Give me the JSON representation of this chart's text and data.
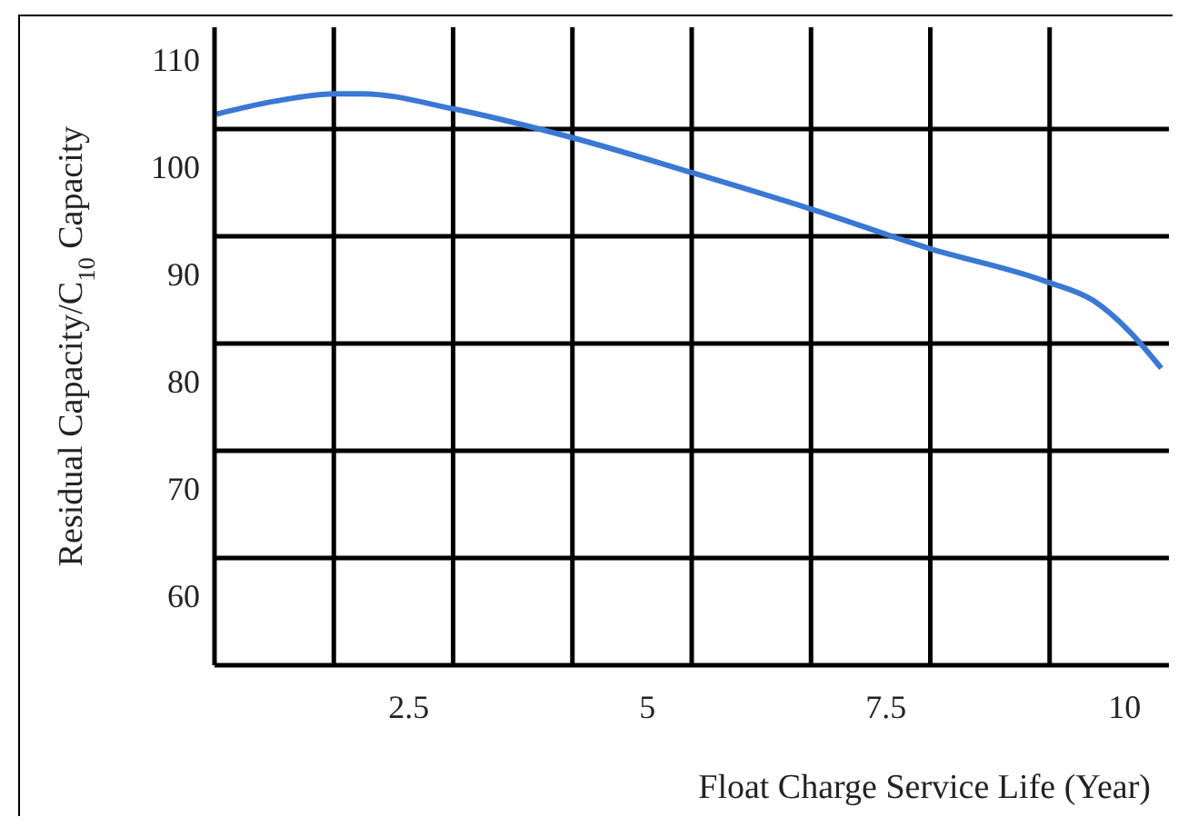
{
  "chart_data": {
    "type": "line",
    "xlabel": "Float Charge Service Life (Year)",
    "ylabel": "Residual Capacity/C$_{10}$ Capacity",
    "x": [
      0.37,
      0.98,
      1.6,
      1.9,
      2.85,
      4.1,
      5.33,
      6.58,
      7.83,
      9.06,
      9.56,
      9.94,
      10.27
    ],
    "series": [
      {
        "color": "#3a78d4",
        "values": [
          104.9,
          106.1,
          106.8,
          106.8,
          105.4,
          102.7,
          99.5,
          96.1,
          92.4,
          89.3,
          87.5,
          84.6,
          81.2
        ]
      }
    ],
    "xlim": [
      0.35,
      10.35
    ],
    "xticks": [
      {
        "value": 1.6,
        "label": null
      },
      2.5,
      {
        "value": 2.85,
        "label": null
      },
      {
        "value": 4.1,
        "label": null
      },
      5,
      {
        "value": 5.35,
        "label": null
      },
      {
        "value": 6.6,
        "label": null
      },
      7.5,
      {
        "value": 7.85,
        "label": null
      },
      {
        "value": 9.1,
        "label": null
      },
      10
    ],
    "ylim": [
      53.5,
      113
    ],
    "yticks": [
      60,
      {
        "value": 63.5,
        "label": null
      },
      70,
      {
        "value": 73.5,
        "label": null
      },
      80,
      {
        "value": 83.5,
        "label": null
      },
      90,
      {
        "value": 93.5,
        "label": null
      },
      100,
      {
        "value": 103.5,
        "label": null
      },
      110
    ],
    "grid": true,
    "marker": "none",
    "line_style": "solid"
  }
}
